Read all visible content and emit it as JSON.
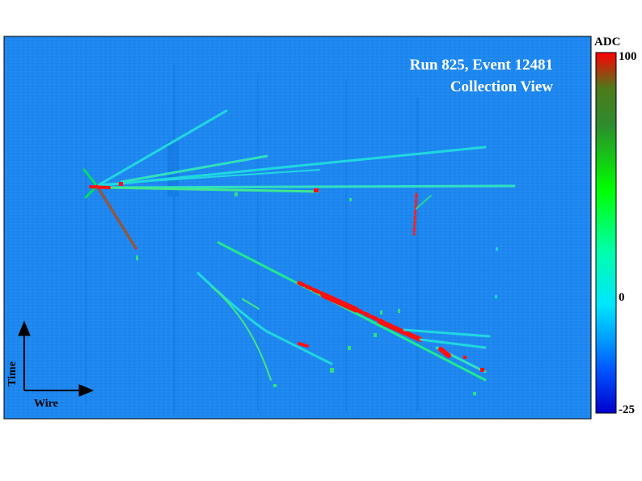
{
  "title": {
    "line1": "Run 825, Event 12481",
    "line2": "Collection View"
  },
  "colorbar": {
    "label": "ADC",
    "max_label": "100",
    "mid_label": "0",
    "min_label": "-25",
    "colors": [
      "#0000cc",
      "#0066ff",
      "#1e8fff",
      "#00ffff",
      "#00ff00",
      "#30c030",
      "#228b22",
      "#ff0000"
    ]
  },
  "axes": {
    "vertical_label": "Time",
    "horizontal_label": "Wire"
  },
  "background_color": "#1e88f0"
}
